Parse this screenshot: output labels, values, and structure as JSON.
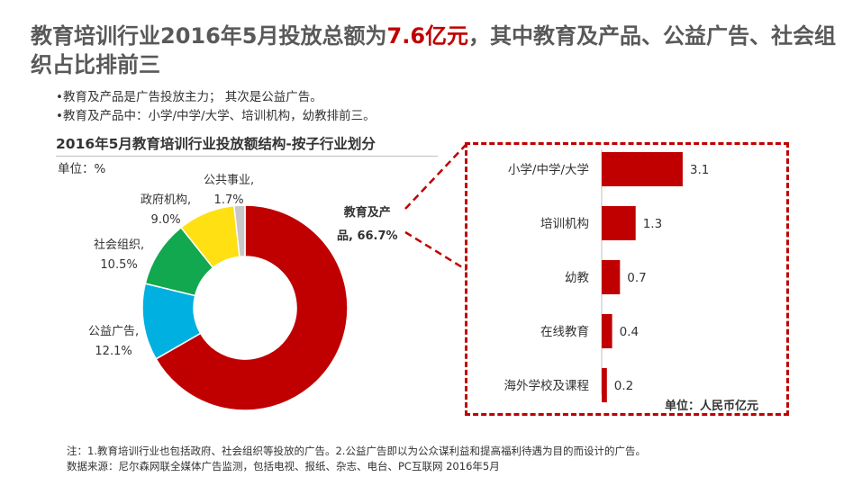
{
  "title": {
    "part1": "教育培训行业2016年5月投放总额为",
    "highlight": "7.6亿元",
    "part2": "，其中教育及产品、公益广告、社会组织占比排前三"
  },
  "bullets": [
    "教育及产品是广告投放主力； 其次是公益广告。",
    "教育及产品中：小学/中学/大学、培训机构，幼教排前三。"
  ],
  "notes": [
    "注：1.教育培训行业也包括政府、社会组织等投放的广告。2.公益广告即以为公众谋利益和提高福利待遇为目的而设计的广告。",
    "数据来源：尼尔森网联全媒体广告监测，包括电视、报纸、杂志、电台、PC互联网  2016年5月"
  ],
  "colors": {
    "accent": "#c00000",
    "title_gray": "#595959"
  },
  "chart_data": [
    {
      "type": "pie",
      "style": "donut",
      "title": "2016年5月教育培训行业投放额结构-按子行业划分",
      "unit": "单位：%",
      "slices": [
        {
          "name": "教育及产品",
          "value": 66.7,
          "label_line1": "教育及产",
          "label_line2": "品, 66.7%",
          "color": "#c00000"
        },
        {
          "name": "公益广告",
          "value": 12.1,
          "label_line1": "公益广告,",
          "label_line2": "12.1%",
          "color": "#00b0e0"
        },
        {
          "name": "社会组织",
          "value": 10.5,
          "label_line1": "社会组织,",
          "label_line2": "10.5%",
          "color": "#11a84f"
        },
        {
          "name": "政府机构",
          "value": 9.0,
          "label_line1": "政府机构,",
          "label_line2": "9.0%",
          "color": "#ffe013"
        },
        {
          "name": "公共事业",
          "value": 1.7,
          "label_line1": "公共事业,",
          "label_line2": "1.7%",
          "color": "#c8c8c8"
        }
      ]
    },
    {
      "type": "bar",
      "orientation": "horizontal",
      "unit": "单位：人民币亿元",
      "categories": [
        "小学/中学/大学",
        "培训机构",
        "幼教",
        "在线教育",
        "海外学校及课程"
      ],
      "values": [
        3.1,
        1.3,
        0.7,
        0.4,
        0.2
      ],
      "value_labels": [
        "3.1",
        "1.3",
        "0.7",
        "0.4",
        "0.2"
      ],
      "color": "#c00000",
      "xlim": [
        0,
        3.5
      ]
    }
  ]
}
